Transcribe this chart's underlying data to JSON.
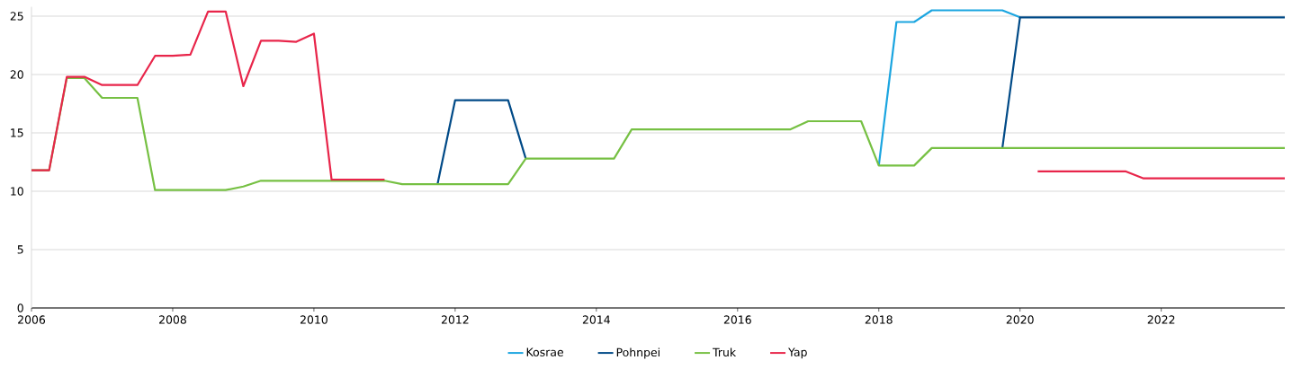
{
  "chart_data": {
    "type": "line",
    "xlim": [
      2006,
      2023.75
    ],
    "xticks": [
      2006,
      2008,
      2010,
      2012,
      2014,
      2016,
      2018,
      2020,
      2022
    ],
    "ylim": [
      0,
      25.8
    ],
    "yticks": [
      0,
      5,
      10,
      15,
      20,
      25
    ],
    "grid": "y",
    "legend": "bottom",
    "series": [
      {
        "name": "Kosrae",
        "color": "#1ba5e0",
        "x": [
          2018,
          2018.25,
          2018.5,
          2018.75,
          2019,
          2019.25,
          2019.5,
          2019.75,
          2020
        ],
        "values": [
          12.2,
          24.5,
          24.5,
          25.5,
          25.5,
          25.5,
          25.5,
          25.5,
          24.9
        ]
      },
      {
        "name": "Pohnpei",
        "color": "#004a87",
        "x": [
          2011.75,
          2012,
          2012.25,
          2012.5,
          2012.75,
          2013,
          2013.25,
          2019.75,
          2020,
          2020.25,
          2020.5,
          2020.75,
          2021,
          2021.25,
          2021.5,
          2021.75,
          2022,
          2022.25,
          2022.5,
          2022.75,
          2023,
          2023.25,
          2023.5,
          2023.75
        ],
        "values": [
          10.6,
          17.8,
          17.8,
          17.8,
          17.8,
          12.8,
          null,
          13.7,
          24.9,
          24.9,
          24.9,
          24.9,
          24.9,
          24.9,
          24.9,
          24.9,
          24.9,
          24.9,
          24.9,
          24.9,
          24.9,
          24.9,
          24.9,
          24.9
        ]
      },
      {
        "name": "Truk",
        "color": "#76c043",
        "x": [
          2006,
          2006.25,
          2006.5,
          2006.75,
          2007,
          2007.25,
          2007.5,
          2007.75,
          2008,
          2008.25,
          2008.5,
          2008.75,
          2009,
          2009.25,
          2009.5,
          2009.75,
          2010,
          2010.25,
          2010.5,
          2010.75,
          2011,
          2011.25,
          2011.5,
          2011.75,
          2012,
          2012.25,
          2012.5,
          2012.75,
          2013,
          2013.25,
          2013.5,
          2013.75,
          2014,
          2014.25,
          2014.5,
          2014.75,
          2015,
          2015.25,
          2015.5,
          2015.75,
          2016,
          2016.25,
          2016.5,
          2016.75,
          2017,
          2017.25,
          2017.5,
          2017.75,
          2018,
          2018.25,
          2018.5,
          2018.75,
          2019,
          2019.25,
          2019.5,
          2019.75,
          2020,
          2020.25,
          2020.5,
          2020.75,
          2021,
          2021.25,
          2021.5,
          2021.75,
          2022,
          2022.25,
          2022.5,
          2022.75,
          2023,
          2023.25,
          2023.5,
          2023.75
        ],
        "values": [
          11.8,
          11.8,
          19.7,
          19.7,
          18.0,
          18.0,
          18.0,
          10.1,
          10.1,
          10.1,
          10.1,
          10.1,
          10.4,
          10.9,
          10.9,
          10.9,
          10.9,
          10.9,
          10.9,
          10.9,
          10.9,
          10.6,
          10.6,
          10.6,
          10.6,
          10.6,
          10.6,
          10.6,
          12.8,
          12.8,
          12.8,
          12.8,
          12.8,
          12.8,
          15.3,
          15.3,
          15.3,
          15.3,
          15.3,
          15.3,
          15.3,
          15.3,
          15.3,
          15.3,
          16.0,
          16.0,
          16.0,
          16.0,
          12.2,
          12.2,
          12.2,
          13.7,
          13.7,
          13.7,
          13.7,
          13.7,
          13.7,
          13.7,
          13.7,
          13.7,
          13.7,
          13.7,
          13.7,
          13.7,
          13.7,
          13.7,
          13.7,
          13.7,
          13.7,
          13.7,
          13.7,
          13.7
        ]
      },
      {
        "name": "Yap",
        "color": "#e8254a",
        "x": [
          2006,
          2006.25,
          2006.5,
          2006.75,
          2007,
          2007.25,
          2007.5,
          2007.75,
          2008,
          2008.25,
          2008.5,
          2008.75,
          2009,
          2009.25,
          2009.5,
          2009.75,
          2010,
          2010.25,
          2010.5,
          2010.75,
          2011,
          2011.25,
          2020.25,
          2020.5,
          2020.75,
          2021,
          2021.25,
          2021.5,
          2021.75,
          2022,
          2022.25,
          2022.5,
          2022.75,
          2023,
          2023.25,
          2023.5,
          2023.75
        ],
        "values": [
          11.8,
          11.8,
          19.8,
          19.8,
          19.1,
          19.1,
          19.1,
          21.6,
          21.6,
          21.7,
          25.4,
          25.4,
          19.0,
          22.9,
          22.9,
          22.8,
          23.5,
          11.0,
          11.0,
          11.0,
          11.0,
          null,
          11.7,
          11.7,
          11.7,
          11.7,
          11.7,
          11.7,
          11.1,
          11.1,
          11.1,
          11.1,
          11.1,
          11.1,
          11.1,
          11.1,
          11.1
        ]
      }
    ]
  }
}
